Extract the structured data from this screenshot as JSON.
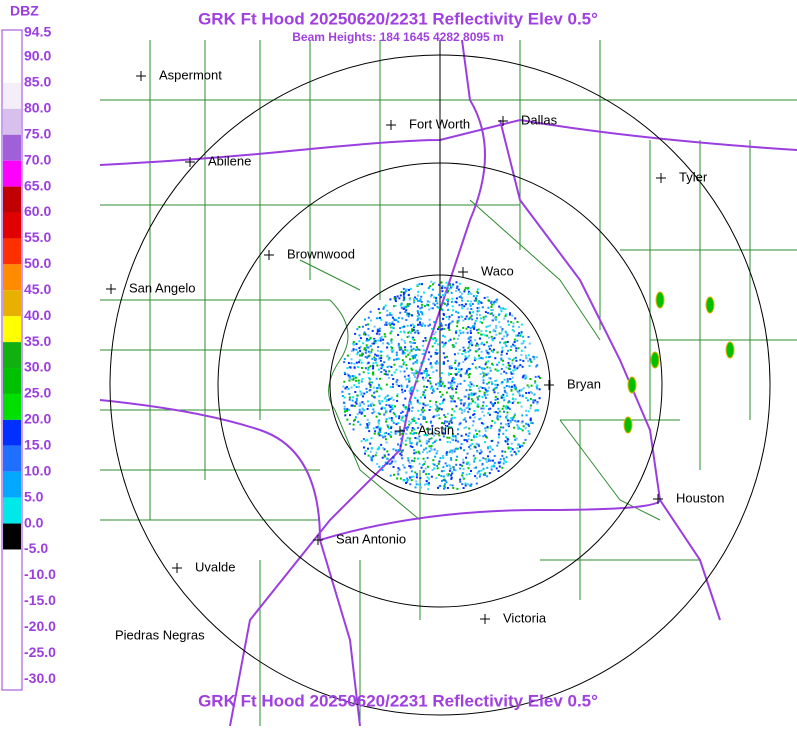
{
  "title": "GRK Ft Hood 20250620/2231 Reflectivity Elev 0.5°",
  "subtitle": "Beam Heights: 184 1645 4282 8095 m",
  "footer": "GRK Ft Hood 20250620/2231 Reflectivity Elev 0.5°",
  "legend": {
    "unit": "DBZ",
    "labels": [
      "94.5",
      "90.0",
      "85.0",
      "80.0",
      "75.0",
      "70.0",
      "65.0",
      "60.0",
      "55.0",
      "50.0",
      "45.0",
      "40.0",
      "35.0",
      "30.0",
      "25.0",
      "20.0",
      "15.0",
      "10.0",
      "5.0",
      "0.0",
      "-5.0",
      "-10.0",
      "-15.0",
      "-20.0",
      "-25.0",
      "-30.0"
    ],
    "colors": [
      "#ffffff",
      "#ffffff",
      "#f4eef8",
      "#d8c0ec",
      "#a060d8",
      "#ff00ff",
      "#c00000",
      "#e00000",
      "#ff3000",
      "#ff8c00",
      "#e8b000",
      "#ffff00",
      "#10b010",
      "#00c000",
      "#00e000",
      "#0030ff",
      "#2070ff",
      "#00a8ff",
      "#00e8e8",
      "#000000",
      "#ffffff",
      "#ffffff",
      "#ffffff",
      "#ffffff",
      "#ffffff"
    ]
  },
  "cities": [
    {
      "name": "Aspermont"
    },
    {
      "name": "Fort Worth"
    },
    {
      "name": "Dallas"
    },
    {
      "name": "Abilene"
    },
    {
      "name": "Tyler"
    },
    {
      "name": "Brownwood"
    },
    {
      "name": "Waco"
    },
    {
      "name": "San Angelo"
    },
    {
      "name": "Bryan"
    },
    {
      "name": "Austin"
    },
    {
      "name": "Houston"
    },
    {
      "name": "San Antonio"
    },
    {
      "name": "Uvalde"
    },
    {
      "name": "Piedras Negras"
    },
    {
      "name": "Victoria"
    }
  ]
}
